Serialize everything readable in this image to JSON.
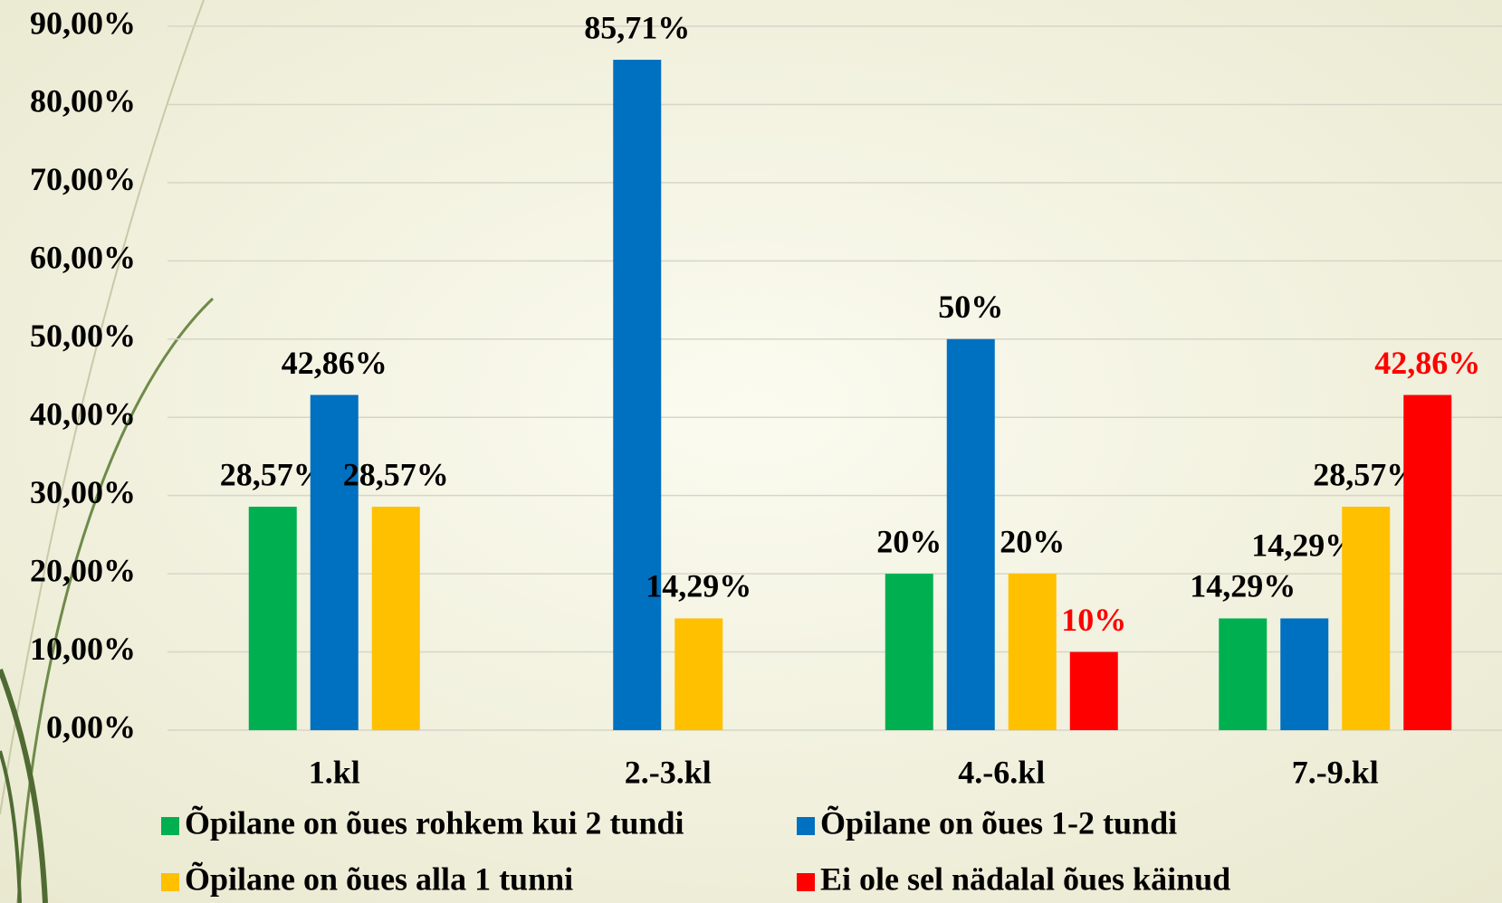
{
  "chart_data": {
    "type": "bar",
    "categories": [
      "1.kl",
      "2.-3.kl",
      "4.-6.kl",
      "7.-9.kl"
    ],
    "series": [
      {
        "name": "Õpilane on õues rohkem kui 2 tundi",
        "color": "#00b050",
        "label_color": "#000000",
        "values": [
          28.57,
          null,
          20,
          14.29
        ],
        "value_labels": [
          "28,57%",
          null,
          "20%",
          "14,29%"
        ]
      },
      {
        "name": "Õpilane on õues 1-2 tundi",
        "color": "#0070c0",
        "label_color": "#000000",
        "values": [
          42.86,
          85.71,
          50,
          14.29
        ],
        "value_labels": [
          "42,86%",
          "85,71%",
          "50%",
          "14,29%"
        ]
      },
      {
        "name": "Õpilane on õues alla 1 tunni",
        "color": "#ffc000",
        "label_color": "#000000",
        "values": [
          28.57,
          14.29,
          20,
          28.57
        ],
        "value_labels": [
          "28,57%",
          "14,29%",
          "20%",
          "28,57%"
        ]
      },
      {
        "name": "Ei ole sel nädalal õues käinud",
        "color": "#ff0000",
        "label_color": "#ff0000",
        "values": [
          null,
          null,
          10,
          42.86
        ],
        "value_labels": [
          null,
          null,
          "10%",
          "42,86%"
        ]
      }
    ],
    "ylim": [
      0,
      90
    ],
    "yticks": [
      {
        "value": 0,
        "label": "0,00%"
      },
      {
        "value": 10,
        "label": "10,00%"
      },
      {
        "value": 20,
        "label": "20,00%"
      },
      {
        "value": 30,
        "label": "30,00%"
      },
      {
        "value": 40,
        "label": "40,00%"
      },
      {
        "value": 50,
        "label": "50,00%"
      },
      {
        "value": 60,
        "label": "60,00%"
      },
      {
        "value": 70,
        "label": "70,00%"
      },
      {
        "value": 80,
        "label": "80,00%"
      },
      {
        "value": 90,
        "label": "90,00%"
      }
    ],
    "grid": true
  }
}
